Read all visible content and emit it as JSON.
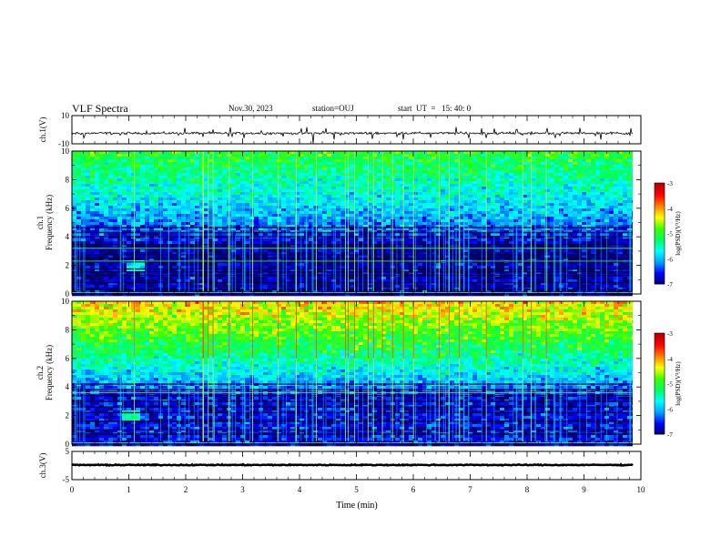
{
  "header": {
    "title": "VLF Spectra",
    "date": "Nov.30, 2023",
    "station": "station=OUJ",
    "start": "start  UT  =   15: 40: 0"
  },
  "chart_data": {
    "type": "heatmap",
    "xlabel": "Time  (min)",
    "xlim": [
      0,
      10
    ],
    "xticks": [
      "0",
      "1",
      "2",
      "3",
      "4",
      "5",
      "6",
      "7",
      "8",
      "9",
      "10"
    ],
    "data_end_min": 9.85,
    "panels": [
      {
        "id": "ch1-waveform",
        "type": "line",
        "ylabel": "ch.1(V)",
        "ylim": [
          -10,
          10
        ],
        "yticks": [
          "10",
          "-10"
        ],
        "baseline_v": -2.5,
        "noise_amplitude_v": 1.5
      },
      {
        "id": "ch1-spectrogram",
        "type": "heatmap",
        "ylabel_channel": "ch.1",
        "ylabel": "Frequency  (kHz)",
        "ylim": [
          0,
          10
        ],
        "yticks": [
          "0",
          "2",
          "4",
          "6",
          "8",
          "10"
        ],
        "colorbar_label": "log(PSD)(V²/Hz)",
        "colorbar_ticks": [
          "-3",
          "-4",
          "-5",
          "-6",
          "-7"
        ],
        "clim": [
          -7,
          -3
        ],
        "colormap": [
          "#00006e",
          "#0000ff",
          "#00a0ff",
          "#00ffff",
          "#00ff60",
          "#40ff00",
          "#ffff00",
          "#ff8000",
          "#ff0000",
          "#b40000"
        ],
        "intensity_top_khz": 10,
        "intensity_top_logpsd": -5.0,
        "intensity_bottom_logpsd": -6.8,
        "hum_lines_khz": [
          0.3,
          0.8,
          1.3,
          1.55,
          1.75,
          2.25,
          2.5,
          2.75,
          3.25,
          3.45,
          4.0,
          4.3,
          4.65
        ],
        "bright_lines_khz": [
          0.1,
          2.3,
          3.2
        ],
        "whistler_patch": {
          "t_min": 1.05,
          "f_khz": 2.0
        }
      },
      {
        "id": "ch2-spectrogram",
        "type": "heatmap",
        "ylabel_channel": "ch.2",
        "ylabel": "Frequency  (kHz)",
        "ylim": [
          0,
          10
        ],
        "yticks": [
          "0",
          "2",
          "4",
          "6",
          "8",
          "10"
        ],
        "colorbar_label": "log(PSD)(V²/Hz)",
        "colorbar_ticks": [
          "-3",
          "-4",
          "-5",
          "-6",
          "-7"
        ],
        "clim": [
          -7,
          -3
        ],
        "colormap": [
          "#00006e",
          "#0000ff",
          "#00a0ff",
          "#00ffff",
          "#00ff60",
          "#40ff00",
          "#ffff00",
          "#ff8000",
          "#ff0000",
          "#b40000"
        ],
        "intensity_top_khz": 10,
        "intensity_top_logpsd": -4.2,
        "intensity_bottom_logpsd": -6.6,
        "hum_lines_khz": [
          0.7,
          1.0,
          1.6,
          2.2,
          2.6,
          3.0,
          3.4,
          3.8,
          4.2
        ],
        "bright_lines_khz": [
          0.1,
          3.6
        ],
        "whistler_patch": {
          "t_min": 1.0,
          "f_khz": 2.0
        }
      },
      {
        "id": "ch3-waveform",
        "type": "line",
        "ylabel": "ch.3(V)",
        "ylim": [
          -5,
          5
        ],
        "yticks": [
          "5",
          "-5"
        ],
        "baseline_v": 0.2,
        "noise_amplitude_v": 0.3
      }
    ]
  }
}
